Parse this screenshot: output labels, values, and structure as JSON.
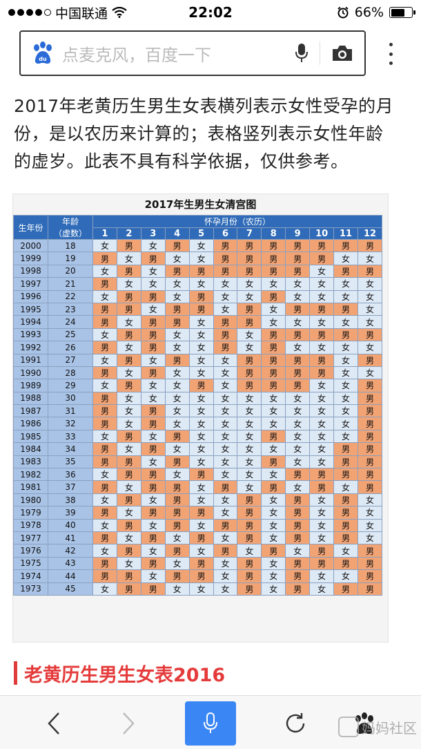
{
  "status_bar": {
    "carrier": "中国联通",
    "time": "22:02",
    "battery": "66%",
    "battery_level": 0.66
  },
  "search": {
    "placeholder": "点麦克风，百度一下"
  },
  "article": {
    "intro": "2017年老黄历生男生女表横列表示女性受孕的月份，是以农历来计算的；表格竖列表示女性年龄的虚岁。此表不具有科学依据，仅供参考。",
    "section_title": "老黄历生男生女表2016"
  },
  "chart": {
    "title": "2017年生男生女清宫图",
    "col_year": "生年份",
    "col_age_line1": "年龄",
    "col_age_line2": "（虚数）",
    "months_label": "怀孕月份（农历）",
    "months": [
      "1",
      "2",
      "3",
      "4",
      "5",
      "6",
      "7",
      "8",
      "9",
      "10",
      "11",
      "12"
    ],
    "rows": [
      {
        "year": "2000",
        "age": "18",
        "cells": [
          "女",
          "男",
          "女",
          "男",
          "女",
          "男",
          "男",
          "男",
          "男",
          "男",
          "男",
          "男"
        ]
      },
      {
        "year": "1999",
        "age": "19",
        "cells": [
          "男",
          "女",
          "男",
          "女",
          "女",
          "男",
          "男",
          "男",
          "男",
          "男",
          "女",
          "女"
        ]
      },
      {
        "year": "1998",
        "age": "20",
        "cells": [
          "女",
          "男",
          "女",
          "男",
          "男",
          "男",
          "男",
          "男",
          "男",
          "女",
          "男",
          "男"
        ]
      },
      {
        "year": "1997",
        "age": "21",
        "cells": [
          "男",
          "女",
          "女",
          "女",
          "女",
          "女",
          "女",
          "女",
          "女",
          "女",
          "女",
          "女"
        ]
      },
      {
        "year": "1996",
        "age": "22",
        "cells": [
          "女",
          "男",
          "男",
          "女",
          "男",
          "女",
          "女",
          "男",
          "女",
          "女",
          "女",
          "女"
        ]
      },
      {
        "year": "1995",
        "age": "23",
        "cells": [
          "男",
          "男",
          "女",
          "男",
          "男",
          "女",
          "男",
          "女",
          "男",
          "男",
          "男",
          "女"
        ]
      },
      {
        "year": "1994",
        "age": "24",
        "cells": [
          "男",
          "女",
          "男",
          "男",
          "女",
          "男",
          "男",
          "女",
          "女",
          "女",
          "女",
          "女"
        ]
      },
      {
        "year": "1993",
        "age": "25",
        "cells": [
          "女",
          "男",
          "男",
          "女",
          "女",
          "男",
          "女",
          "男",
          "男",
          "男",
          "男",
          "男"
        ]
      },
      {
        "year": "1992",
        "age": "26",
        "cells": [
          "男",
          "女",
          "男",
          "女",
          "女",
          "男",
          "女",
          "男",
          "女",
          "女",
          "女",
          "女"
        ]
      },
      {
        "year": "1991",
        "age": "27",
        "cells": [
          "女",
          "男",
          "女",
          "男",
          "女",
          "女",
          "男",
          "男",
          "男",
          "男",
          "女",
          "男"
        ]
      },
      {
        "year": "1990",
        "age": "28",
        "cells": [
          "男",
          "女",
          "男",
          "女",
          "女",
          "女",
          "男",
          "男",
          "男",
          "男",
          "女",
          "女"
        ]
      },
      {
        "year": "1989",
        "age": "29",
        "cells": [
          "女",
          "男",
          "女",
          "女",
          "男",
          "女",
          "男",
          "男",
          "男",
          "女",
          "女",
          "男"
        ]
      },
      {
        "year": "1988",
        "age": "30",
        "cells": [
          "男",
          "女",
          "女",
          "女",
          "女",
          "女",
          "女",
          "女",
          "女",
          "女",
          "女",
          "男"
        ]
      },
      {
        "year": "1987",
        "age": "31",
        "cells": [
          "男",
          "女",
          "男",
          "女",
          "女",
          "女",
          "女",
          "女",
          "女",
          "女",
          "女",
          "男"
        ]
      },
      {
        "year": "1986",
        "age": "32",
        "cells": [
          "男",
          "女",
          "男",
          "女",
          "女",
          "女",
          "女",
          "女",
          "女",
          "女",
          "女",
          "男"
        ]
      },
      {
        "year": "1985",
        "age": "33",
        "cells": [
          "女",
          "男",
          "女",
          "男",
          "女",
          "女",
          "女",
          "男",
          "女",
          "女",
          "女",
          "男"
        ]
      },
      {
        "year": "1984",
        "age": "34",
        "cells": [
          "男",
          "女",
          "男",
          "女",
          "女",
          "女",
          "女",
          "女",
          "女",
          "女",
          "男",
          "男"
        ]
      },
      {
        "year": "1983",
        "age": "35",
        "cells": [
          "男",
          "男",
          "女",
          "男",
          "女",
          "女",
          "女",
          "男",
          "女",
          "女",
          "男",
          "男"
        ]
      },
      {
        "year": "1982",
        "age": "36",
        "cells": [
          "女",
          "男",
          "男",
          "女",
          "男",
          "女",
          "女",
          "女",
          "男",
          "男",
          "男",
          "男"
        ]
      },
      {
        "year": "1981",
        "age": "37",
        "cells": [
          "男",
          "女",
          "男",
          "男",
          "女",
          "男",
          "女",
          "男",
          "女",
          "男",
          "女",
          "男"
        ]
      },
      {
        "year": "1980",
        "age": "38",
        "cells": [
          "女",
          "男",
          "女",
          "男",
          "女",
          "女",
          "男",
          "女",
          "男",
          "女",
          "男",
          "女"
        ]
      },
      {
        "year": "1979",
        "age": "39",
        "cells": [
          "男",
          "女",
          "男",
          "男",
          "男",
          "女",
          "男",
          "女",
          "男",
          "女",
          "男",
          "女"
        ]
      },
      {
        "year": "1978",
        "age": "40",
        "cells": [
          "女",
          "男",
          "女",
          "男",
          "女",
          "男",
          "男",
          "女",
          "男",
          "女",
          "男",
          "女"
        ]
      },
      {
        "year": "1977",
        "age": "41",
        "cells": [
          "男",
          "女",
          "男",
          "女",
          "男",
          "女",
          "男",
          "女",
          "男",
          "女",
          "男",
          "女"
        ]
      },
      {
        "year": "1976",
        "age": "42",
        "cells": [
          "女",
          "男",
          "女",
          "男",
          "女",
          "男",
          "女",
          "男",
          "女",
          "男",
          "女",
          "男"
        ]
      },
      {
        "year": "1975",
        "age": "43",
        "cells": [
          "男",
          "女",
          "男",
          "女",
          "男",
          "女",
          "男",
          "女",
          "男",
          "男",
          "男",
          "男"
        ]
      },
      {
        "year": "1974",
        "age": "44",
        "cells": [
          "男",
          "男",
          "女",
          "男",
          "男",
          "女",
          "男",
          "女",
          "男",
          "女",
          "女",
          "男"
        ]
      },
      {
        "year": "1973",
        "age": "45",
        "cells": [
          "女",
          "男",
          "男",
          "女",
          "女",
          "女",
          "男",
          "女",
          "男",
          "女",
          "男",
          "男"
        ]
      }
    ]
  },
  "toolbar": {
    "watermark": "妈妈社区"
  },
  "colors": {
    "male_cell": "#f2a374",
    "female_cell": "#dde9f5",
    "header_blue": "#2f6bb8",
    "accent_red": "#e53b3b",
    "mic_blue": "#3a86f5"
  },
  "icons": [
    "signal-dots-icon",
    "wifi-icon",
    "alarm-icon",
    "battery-icon",
    "baidu-paw-icon",
    "mic-icon",
    "camera-icon",
    "more-vert-icon",
    "back-icon",
    "forward-icon",
    "refresh-icon",
    "paw-menu-icon"
  ]
}
